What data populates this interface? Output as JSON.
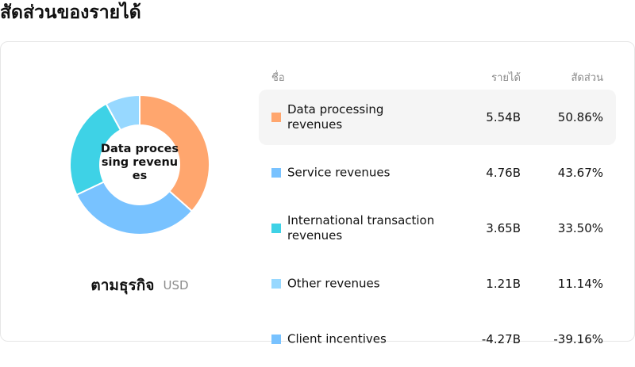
{
  "page_title": "สัดส่วนของรายได้",
  "caption": {
    "main": "ตามธุรกิจ",
    "currency": "USD"
  },
  "donut_center_label": "Data processing revenues",
  "table": {
    "headers": {
      "name": "ชื่อ",
      "revenue": "รายได้",
      "share": "สัดส่วน"
    },
    "rows": [
      {
        "name": "Data processing revenues",
        "revenue": "5.54B",
        "share": "50.86%",
        "color": "#ffa66e",
        "highlighted": true
      },
      {
        "name": "Service revenues",
        "revenue": "4.76B",
        "share": "43.67%",
        "color": "#78c2ff",
        "highlighted": false
      },
      {
        "name": "International transaction revenues",
        "revenue": "3.65B",
        "share": "33.50%",
        "color": "#3ed2e6",
        "highlighted": false
      },
      {
        "name": "Other revenues",
        "revenue": "1.21B",
        "share": "11.14%",
        "color": "#97d8ff",
        "highlighted": false
      },
      {
        "name": "Client incentives",
        "revenue": "-4.27B",
        "share": "-39.16%",
        "color": "#78c2ff",
        "highlighted": false
      }
    ]
  },
  "chart_data": {
    "type": "pie",
    "categories": [
      "Data processing revenues",
      "Service revenues",
      "International transaction revenues",
      "Other revenues"
    ],
    "values": [
      5.54,
      4.76,
      3.65,
      1.21
    ],
    "colors": [
      "#ffa66e",
      "#78c2ff",
      "#3ed2e6",
      "#97d8ff"
    ],
    "unit": "USD"
  }
}
